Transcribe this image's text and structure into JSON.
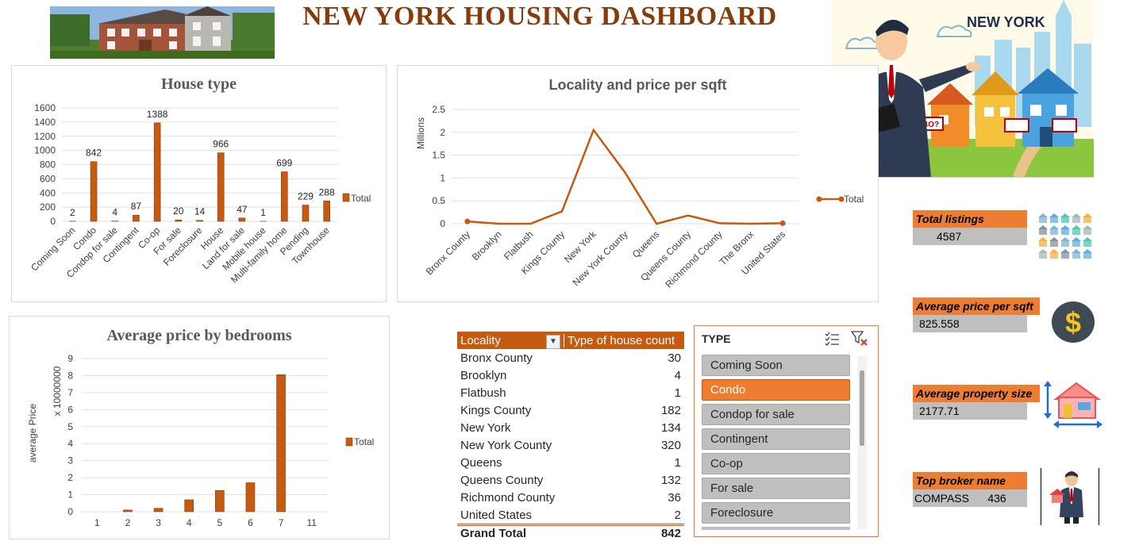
{
  "dashboard": {
    "title": "NEW YORK HOUSING DASHBOARD"
  },
  "promo": {
    "badge_text": "NEW YORK",
    "sign_text": "BO?"
  },
  "house_type_chart": {
    "title": "House type",
    "legend": "Total",
    "chart_data": {
      "type": "bar",
      "title": "House type",
      "categories": [
        "Coming Soon",
        "Condo",
        "Condop for sale",
        "Contingent",
        "Co-op",
        "For sale",
        "Foreclosure",
        "House",
        "Land for sale",
        "Mobile house",
        "Multi-family home",
        "Pending",
        "Townhouse"
      ],
      "values": [
        2,
        842,
        4,
        87,
        1388,
        20,
        14,
        966,
        47,
        1,
        699,
        229,
        288
      ],
      "series": [
        {
          "name": "Total",
          "values": [
            2,
            842,
            4,
            87,
            1388,
            20,
            14,
            966,
            47,
            1,
            699,
            229,
            288
          ]
        }
      ],
      "yticks": [
        "0",
        "200",
        "400",
        "600",
        "800",
        "1000",
        "1200",
        "1400",
        "1600"
      ],
      "ylim": [
        0,
        1600
      ],
      "legend": "right",
      "grid": true
    }
  },
  "locality_chart": {
    "title": "Locality and price per sqft",
    "ylabel": "Millions",
    "legend": "Total",
    "chart_data": {
      "type": "line",
      "title": "Locality and price per sqft",
      "ylabel": "Millions",
      "categories": [
        "Bronx County",
        "Brooklyn",
        "Flatbush",
        "Kings County",
        "New York",
        "New York County",
        "Queens",
        "Queens County",
        "Richmond County",
        "The Bronx",
        "United States"
      ],
      "values": [
        0.05,
        0.0,
        0.0,
        0.27,
        2.05,
        1.12,
        0.0,
        0.18,
        0.01,
        0.0,
        0.01
      ],
      "series": [
        {
          "name": "Total",
          "values": [
            0.05,
            0.0,
            0.0,
            0.27,
            2.05,
            1.12,
            0.0,
            0.18,
            0.01,
            0.0,
            0.01
          ]
        }
      ],
      "yticks": [
        "0",
        "0.5",
        "1",
        "1.5",
        "2",
        "2.5"
      ],
      "ylim": [
        0,
        2.5
      ],
      "legend": "right",
      "grid": true
    }
  },
  "bedrooms_chart": {
    "title": "Average price by bedrooms",
    "ylabel": "average Price",
    "unit_label": "x 10000000",
    "legend": "Total",
    "chart_data": {
      "type": "bar",
      "title": "Average price by bedrooms",
      "ylabel": "average Price",
      "categories": [
        "1",
        "2",
        "3",
        "4",
        "5",
        "6",
        "7",
        "11"
      ],
      "values": [
        0.0,
        0.1,
        0.2,
        0.7,
        1.25,
        1.7,
        8.05,
        0.0
      ],
      "series": [
        {
          "name": "Total",
          "values": [
            0.0,
            0.1,
            0.2,
            0.7,
            1.25,
            1.7,
            8.05,
            0.0
          ]
        }
      ],
      "yticks": [
        "0",
        "1",
        "2",
        "3",
        "4",
        "5",
        "6",
        "7",
        "8",
        "9"
      ],
      "ylim": [
        0,
        9
      ],
      "legend": "right",
      "grid": true
    }
  },
  "pivot": {
    "col1": "Locality",
    "col2": "Type of house count",
    "rows": [
      {
        "name": "Bronx County",
        "count": "30"
      },
      {
        "name": "Brooklyn",
        "count": "4"
      },
      {
        "name": "Flatbush",
        "count": "1"
      },
      {
        "name": "Kings County",
        "count": "182"
      },
      {
        "name": "New York",
        "count": "134"
      },
      {
        "name": "New York County",
        "count": "320"
      },
      {
        "name": "Queens",
        "count": "1"
      },
      {
        "name": "Queens County",
        "count": "132"
      },
      {
        "name": "Richmond County",
        "count": "36"
      },
      {
        "name": "United States",
        "count": "2"
      }
    ],
    "total_label": "Grand Total",
    "total_value": "842"
  },
  "slicer": {
    "title": "TYPE",
    "items": [
      "Coming Soon",
      "Condo",
      "Condop for sale",
      "Contingent",
      "Co-op",
      "For sale",
      "Foreclosure"
    ],
    "selected": "Condo"
  },
  "kpis": {
    "total_listings": {
      "label": "Total listings",
      "value": "4587"
    },
    "avg_price_sqft": {
      "label": "Average price per sqft",
      "value": "825.558"
    },
    "avg_property_size": {
      "label": "Average property size",
      "value": "2177.71"
    },
    "top_broker": {
      "label": "Top broker name",
      "value": "COMPASS      436"
    }
  },
  "colors": {
    "accent": "#ed7d31",
    "bar": "#c55a11",
    "bar_dark": "#843c0c",
    "title": "#843c0c",
    "slicer_item": "#bfbfbf"
  }
}
